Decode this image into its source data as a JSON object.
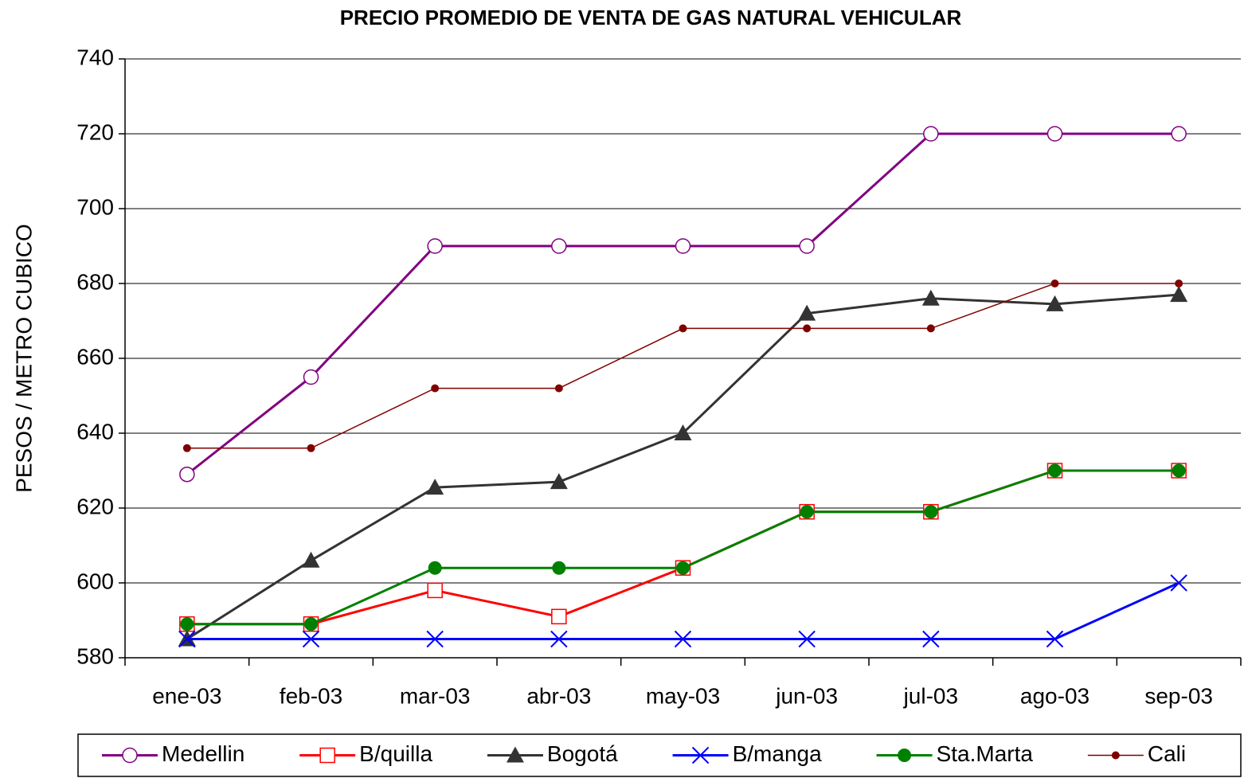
{
  "chart_data": {
    "type": "line",
    "title": "PRECIO PROMEDIO DE VENTA DE GAS NATURAL VEHICULAR",
    "y_label": "PESOS / METRO CUBICO",
    "categories": [
      "ene-03",
      "feb-03",
      "mar-03",
      "abr-03",
      "may-03",
      "jun-03",
      "jul-03",
      "ago-03",
      "sep-03"
    ],
    "series": [
      {
        "name": "Medellin",
        "color": "#800080",
        "marker": "open-circle",
        "line_width": 3,
        "values": [
          629,
          655,
          690,
          690,
          690,
          690,
          720,
          720,
          720
        ]
      },
      {
        "name": "B/quilla",
        "color": "#ff0000",
        "marker": "open-square",
        "line_width": 3,
        "values": [
          589,
          589,
          598,
          591,
          604,
          619,
          619,
          630,
          630
        ]
      },
      {
        "name": "Bogotá",
        "color": "#333333",
        "marker": "triangle",
        "line_width": 3,
        "values": [
          585,
          606,
          625.5,
          627,
          640,
          672,
          676,
          674.5,
          677
        ]
      },
      {
        "name": "B/manga",
        "color": "#0000ff",
        "marker": "cross",
        "line_width": 3,
        "values": [
          585,
          585,
          585,
          585,
          585,
          585,
          585,
          585,
          600
        ]
      },
      {
        "name": "Sta.Marta",
        "color": "#008000",
        "marker": "dot",
        "line_width": 3,
        "values": [
          589,
          589,
          604,
          604,
          604,
          619,
          619,
          630,
          630
        ]
      },
      {
        "name": "Cali",
        "color": "#800000",
        "marker": "small-dot",
        "line_width": 1.5,
        "values": [
          636,
          636,
          652,
          652,
          668,
          668,
          668,
          680,
          680
        ]
      }
    ],
    "ylim": [
      580,
      740
    ],
    "yticks": [
      580,
      600,
      620,
      640,
      660,
      680,
      700,
      720,
      740
    ],
    "grid": true
  }
}
